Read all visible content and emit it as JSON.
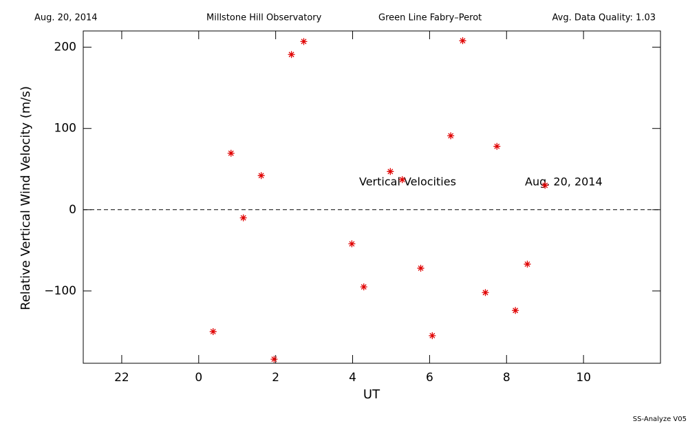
{
  "chart_data": {
    "type": "scatter",
    "header": [
      "Aug. 20, 2014",
      "Millstone Hill Observatory",
      "Green Line Fabry–Perot",
      "Avg. Data Quality: 1.03"
    ],
    "xlabel": "UT",
    "ylabel": "Relative Vertical Wind Velocity (m/s)",
    "annotations": [
      "Vertical Velocities",
      "Aug. 20, 2014"
    ],
    "footer": "SS-Analyze V05",
    "color": "#e00000",
    "xlim": [
      -3,
      12
    ],
    "xticks": [
      {
        "value": -2,
        "label": "22"
      },
      0,
      2,
      4,
      6,
      8,
      10
    ],
    "ylim": [
      -189,
      220
    ],
    "yticks": [
      {
        "value": -100,
        "label": "−100"
      },
      0,
      100,
      200
    ],
    "x": [
      0.375,
      0.84,
      1.16,
      1.625,
      1.96,
      2.41,
      2.73,
      3.98,
      4.29,
      4.98,
      5.29,
      5.77,
      6.07,
      6.55,
      6.86,
      7.45,
      7.75,
      8.23,
      8.54,
      9.0
    ],
    "values": [
      -150,
      69.5,
      -10,
      42,
      -184,
      191,
      207,
      -42,
      -95,
      47,
      37,
      -72,
      -155,
      91,
      208,
      -102,
      78,
      -124,
      -67,
      30
    ]
  }
}
